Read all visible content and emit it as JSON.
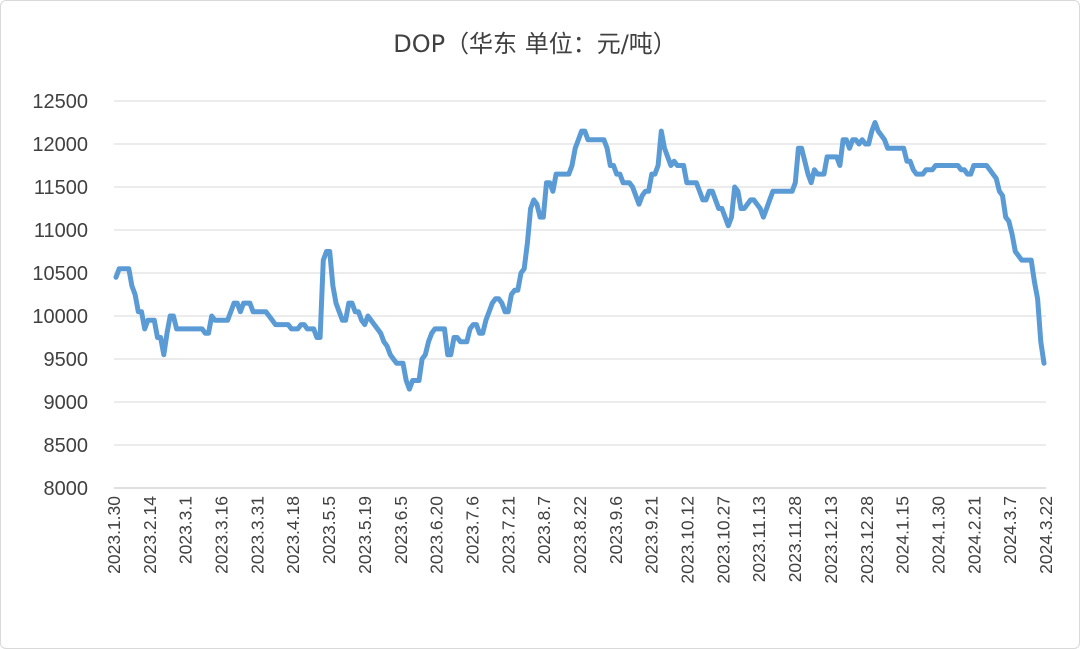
{
  "chart_data": {
    "type": "line",
    "title": "DOP（华东 单位：元/吨）",
    "xlabel": "",
    "ylabel": "",
    "ylim": [
      8000,
      12500
    ],
    "yticks": [
      8000,
      8500,
      9000,
      9500,
      10000,
      10500,
      11000,
      11500,
      12000,
      12500
    ],
    "grid": true,
    "legend": "none",
    "colors": {
      "series": "#5b9bd5",
      "grid": "#d9d9d9",
      "text": "#404040"
    },
    "x_tick_labels": [
      "2023.1.30",
      "2023.2.14",
      "2023.3.1",
      "2023.3.16",
      "2023.3.31",
      "2023.4.18",
      "2023.5.5",
      "2023.5.19",
      "2023.6.5",
      "2023.6.20",
      "2023.7.6",
      "2023.7.21",
      "2023.8.7",
      "2023.8.22",
      "2023.9.6",
      "2023.9.21",
      "2023.10.12",
      "2023.10.27",
      "2023.11.13",
      "2023.11.28",
      "2023.12.13",
      "2023.12.28",
      "2024.1.15",
      "2024.1.30",
      "2024.2.21",
      "2024.3.7",
      "2024.3.22"
    ],
    "series": [
      {
        "values": [
          10450,
          10550,
          10550,
          10550,
          10550,
          10350,
          10250,
          10050,
          10050,
          9850,
          9950,
          9950,
          9950,
          9750,
          9750,
          9550,
          9800,
          10000,
          10000,
          9850,
          9850,
          9850,
          9850,
          9850,
          9850,
          9850,
          9850,
          9850,
          9800,
          9800,
          10000,
          9950,
          9950,
          9950,
          9950,
          9950,
          10050,
          10150,
          10150,
          10050,
          10150,
          10150,
          10150,
          10050,
          10050,
          10050,
          10050,
          10050,
          10000,
          9950,
          9900,
          9900,
          9900,
          9900,
          9900,
          9850,
          9850,
          9850,
          9900,
          9900,
          9850,
          9850,
          9850,
          9750,
          9750,
          10650,
          10750,
          10750,
          10350,
          10150,
          10050,
          9950,
          9950,
          10150,
          10150,
          10050,
          10050,
          9950,
          9900,
          10000,
          9950,
          9900,
          9850,
          9800,
          9700,
          9650,
          9550,
          9500,
          9450,
          9450,
          9450,
          9250,
          9150,
          9250,
          9250,
          9250,
          9500,
          9550,
          9700,
          9800,
          9850,
          9850,
          9850,
          9850,
          9550,
          9550,
          9750,
          9750,
          9700,
          9700,
          9700,
          9850,
          9900,
          9900,
          9800,
          9800,
          9950,
          10050,
          10150,
          10200,
          10200,
          10150,
          10050,
          10050,
          10250,
          10300,
          10300,
          10500,
          10550,
          10850,
          11250,
          11350,
          11300,
          11150,
          11150,
          11550,
          11550,
          11450,
          11650,
          11650,
          11650,
          11650,
          11650,
          11750,
          11950,
          12050,
          12150,
          12150,
          12050,
          12050,
          12050,
          12050,
          12050,
          12050,
          11950,
          11750,
          11750,
          11650,
          11650,
          11550,
          11550,
          11550,
          11500,
          11400,
          11300,
          11400,
          11450,
          11450,
          11650,
          11650,
          11750,
          12150,
          11950,
          11850,
          11750,
          11800,
          11750,
          11750,
          11750,
          11550,
          11550,
          11550,
          11550,
          11450,
          11350,
          11350,
          11450,
          11450,
          11350,
          11250,
          11250,
          11150,
          11050,
          11150,
          11500,
          11450,
          11250,
          11250,
          11300,
          11350,
          11350,
          11300,
          11250,
          11150,
          11250,
          11350,
          11450,
          11450,
          11450,
          11450,
          11450,
          11450,
          11450,
          11550,
          11950,
          11950,
          11800,
          11650,
          11550,
          11700,
          11650,
          11650,
          11650,
          11850,
          11850,
          11850,
          11850,
          11750,
          12050,
          12050,
          11950,
          12050,
          12050,
          12000,
          12050,
          12000,
          12000,
          12150,
          12250,
          12150,
          12100,
          12050,
          11950,
          11950,
          11950,
          11950,
          11950,
          11950,
          11800,
          11800,
          11700,
          11650,
          11650,
          11650,
          11700,
          11700,
          11700,
          11750,
          11750,
          11750,
          11750,
          11750,
          11750,
          11750,
          11750,
          11700,
          11700,
          11650,
          11650,
          11750,
          11750,
          11750,
          11750,
          11750,
          11700,
          11650,
          11600,
          11450,
          11400,
          11150,
          11100,
          10950,
          10750,
          10700,
          10650,
          10650,
          10650,
          10650,
          10400,
          10200,
          9700,
          9450
        ]
      }
    ]
  }
}
